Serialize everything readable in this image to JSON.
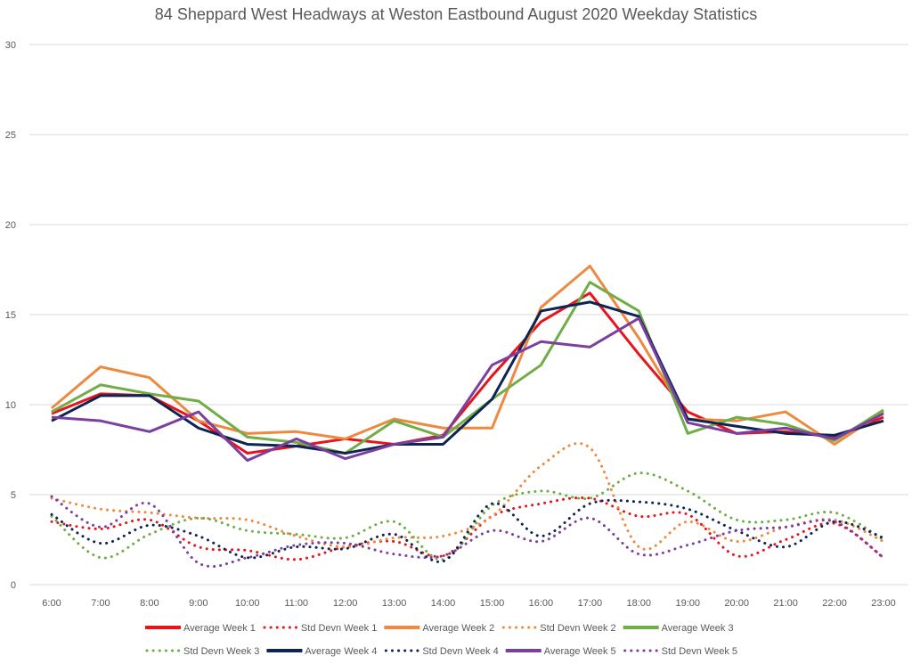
{
  "chart_data": {
    "type": "line",
    "title": "84 Sheppard West Headways at Weston Eastbound August 2020 Weekday Statistics",
    "xlabel": "",
    "ylabel": "",
    "ylim": [
      0,
      30
    ],
    "yticks": [
      0,
      5,
      10,
      15,
      20,
      25,
      30
    ],
    "grid": true,
    "legend_position": "bottom",
    "categories": [
      "6:00",
      "7:00",
      "8:00",
      "9:00",
      "10:00",
      "11:00",
      "12:00",
      "13:00",
      "14:00",
      "15:00",
      "16:00",
      "17:00",
      "18:00",
      "19:00",
      "20:00",
      "21:00",
      "22:00",
      "23:00"
    ],
    "series": [
      {
        "name": "Average Week 1",
        "style": "solid",
        "color": "#e8141c",
        "values": [
          9.5,
          10.6,
          10.5,
          9.1,
          7.3,
          7.7,
          8.1,
          7.8,
          8.3,
          11.6,
          14.6,
          16.2,
          12.8,
          9.6,
          8.4,
          8.5,
          8.2,
          9.3
        ]
      },
      {
        "name": "Std Devn Week 1",
        "style": "dotted",
        "color": "#e8141c",
        "values": [
          3.5,
          3.1,
          3.6,
          2.1,
          1.9,
          1.4,
          2.1,
          2.4,
          1.6,
          3.8,
          4.5,
          4.8,
          3.8,
          3.9,
          1.6,
          2.5,
          3.4,
          1.5
        ]
      },
      {
        "name": "Average Week 2",
        "style": "solid",
        "color": "#ed8a3f",
        "values": [
          9.8,
          12.1,
          11.5,
          9.1,
          8.4,
          8.5,
          8.1,
          9.2,
          8.7,
          8.7,
          15.4,
          17.7,
          13.7,
          9.2,
          9.1,
          9.6,
          7.8,
          9.6
        ]
      },
      {
        "name": "Std Devn Week 2",
        "style": "dotted",
        "color": "#ed8a3f",
        "values": [
          4.8,
          4.2,
          4.0,
          3.7,
          3.6,
          2.7,
          2.1,
          2.6,
          2.7,
          3.8,
          6.6,
          7.6,
          2.1,
          3.5,
          2.4,
          3.2,
          3.6,
          2.4
        ]
      },
      {
        "name": "Average Week 3",
        "style": "solid",
        "color": "#70ad47",
        "values": [
          9.6,
          11.1,
          10.6,
          10.2,
          8.2,
          7.9,
          7.3,
          9.1,
          8.2,
          10.3,
          12.2,
          16.8,
          15.2,
          8.4,
          9.3,
          8.9,
          8.0,
          9.7
        ]
      },
      {
        "name": "Std Devn Week 3",
        "style": "dotted",
        "color": "#70ad47",
        "values": [
          3.8,
          1.5,
          2.8,
          3.7,
          3.0,
          2.8,
          2.6,
          3.5,
          1.4,
          4.4,
          5.2,
          4.8,
          6.2,
          5.2,
          3.6,
          3.6,
          4.0,
          2.5
        ]
      },
      {
        "name": "Average Week 4",
        "style": "solid",
        "color": "#0e2452",
        "values": [
          9.1,
          10.5,
          10.5,
          8.7,
          7.8,
          7.7,
          7.3,
          7.8,
          7.8,
          10.3,
          15.2,
          15.7,
          14.9,
          9.2,
          8.8,
          8.4,
          8.3,
          9.1
        ]
      },
      {
        "name": "Std Devn Week 4",
        "style": "dotted",
        "color": "#0e2452",
        "values": [
          3.9,
          2.3,
          3.3,
          2.7,
          1.5,
          2.1,
          2.0,
          2.8,
          1.3,
          4.5,
          2.7,
          4.5,
          4.6,
          4.2,
          3.0,
          2.1,
          3.5,
          2.6
        ]
      },
      {
        "name": "Average Week 5",
        "style": "solid",
        "color": "#7b3fa0",
        "values": [
          9.3,
          9.1,
          8.5,
          9.6,
          6.9,
          8.1,
          7.0,
          7.8,
          8.2,
          12.2,
          13.5,
          13.2,
          14.8,
          9.0,
          8.4,
          8.7,
          8.1,
          9.5
        ]
      },
      {
        "name": "Std Devn Week 5",
        "style": "dotted",
        "color": "#7b3fa0",
        "values": [
          4.9,
          3.2,
          4.5,
          1.2,
          1.5,
          2.2,
          2.3,
          1.7,
          1.6,
          3.0,
          2.4,
          3.7,
          1.7,
          2.2,
          3.0,
          3.2,
          3.5,
          1.5
        ]
      }
    ]
  }
}
